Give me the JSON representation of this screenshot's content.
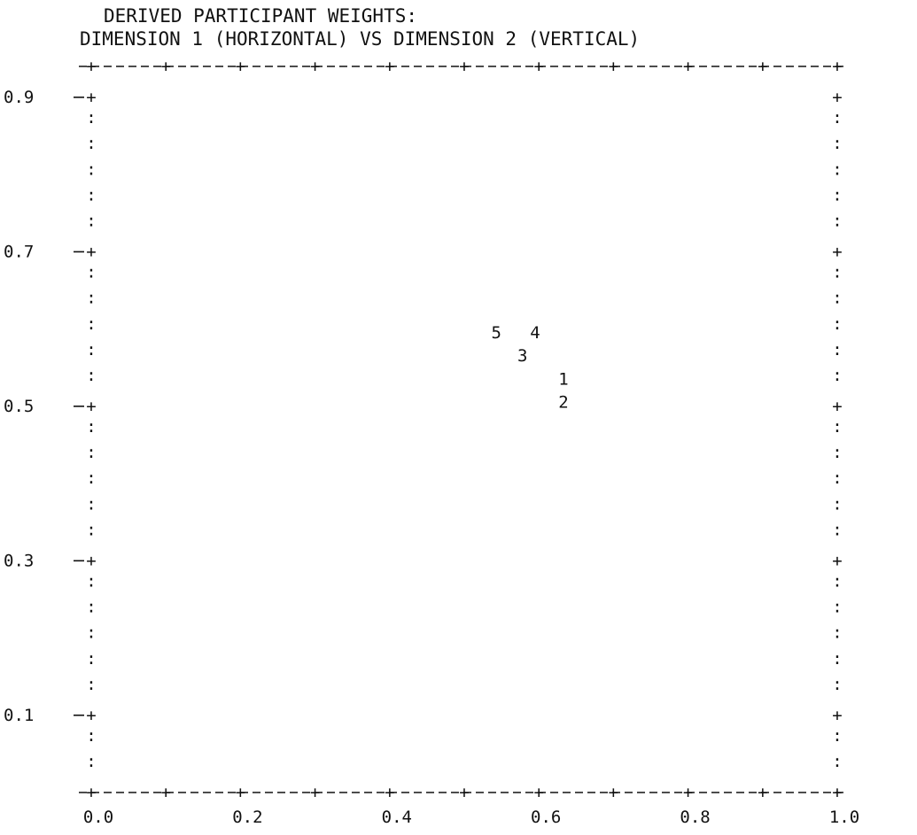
{
  "chart_data": {
    "type": "scatter",
    "title": "DERIVED PARTICIPANT WEIGHTS:",
    "subtitle": "DIMENSION 1 (HORIZONTAL) VS DIMENSION 2 (VERTICAL)",
    "xlim": [
      0.0,
      1.0
    ],
    "ylim": [
      0.0,
      0.94
    ],
    "x_ticks": [
      "0.0",
      "0.2",
      "0.4",
      "0.6",
      "0.8",
      "1.0"
    ],
    "x_tick_values": [
      0.0,
      0.2,
      0.4,
      0.6,
      0.8,
      1.0
    ],
    "y_ticks": [
      "0.9",
      "0.7",
      "0.5",
      "0.3",
      "0.1"
    ],
    "y_tick_values": [
      0.9,
      0.7,
      0.5,
      0.3,
      0.1
    ],
    "grid": false,
    "points": [
      {
        "label": "1",
        "x": 0.633,
        "y": 0.535
      },
      {
        "label": "2",
        "x": 0.633,
        "y": 0.505
      },
      {
        "label": "3",
        "x": 0.578,
        "y": 0.565
      },
      {
        "label": "4",
        "x": 0.595,
        "y": 0.595
      },
      {
        "label": "5",
        "x": 0.543,
        "y": 0.595
      }
    ]
  }
}
